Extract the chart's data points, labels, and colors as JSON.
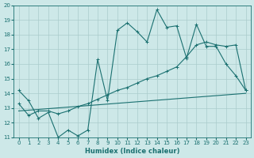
{
  "xlabel": "Humidex (Indice chaleur)",
  "xlim": [
    -0.5,
    23.5
  ],
  "ylim": [
    11,
    20
  ],
  "yticks": [
    11,
    12,
    13,
    14,
    15,
    16,
    17,
    18,
    19,
    20
  ],
  "xticks": [
    0,
    1,
    2,
    3,
    4,
    5,
    6,
    7,
    8,
    9,
    10,
    11,
    12,
    13,
    14,
    15,
    16,
    17,
    18,
    19,
    20,
    21,
    22,
    23
  ],
  "bg_color": "#cde8e8",
  "line_color": "#1a7070",
  "grid_color": "#aacccc",
  "line1_x": [
    0,
    1,
    2,
    3,
    4,
    5,
    6,
    7,
    8,
    9,
    10,
    11,
    12,
    13,
    14,
    15,
    16,
    17,
    18,
    19,
    20,
    21,
    22,
    23
  ],
  "line1_y": [
    14.2,
    13.5,
    12.3,
    12.7,
    11.0,
    11.5,
    11.1,
    11.5,
    16.3,
    13.5,
    18.3,
    18.8,
    18.2,
    17.5,
    19.7,
    18.5,
    18.6,
    16.4,
    18.7,
    17.2,
    17.2,
    16.0,
    15.2,
    14.2
  ],
  "line2_x": [
    0,
    1,
    2,
    3,
    4,
    5,
    6,
    7,
    8,
    9,
    10,
    11,
    12,
    13,
    14,
    15,
    16,
    17,
    18,
    19,
    20,
    21,
    22,
    23
  ],
  "line2_y": [
    13.3,
    12.5,
    12.8,
    12.8,
    12.6,
    12.8,
    13.1,
    13.3,
    13.6,
    13.9,
    14.2,
    14.4,
    14.7,
    15.0,
    15.2,
    15.5,
    15.8,
    16.5,
    17.3,
    17.5,
    17.3,
    17.2,
    17.3,
    14.2
  ],
  "line3_x": [
    0,
    23
  ],
  "line3_y": [
    12.8,
    14.0
  ]
}
